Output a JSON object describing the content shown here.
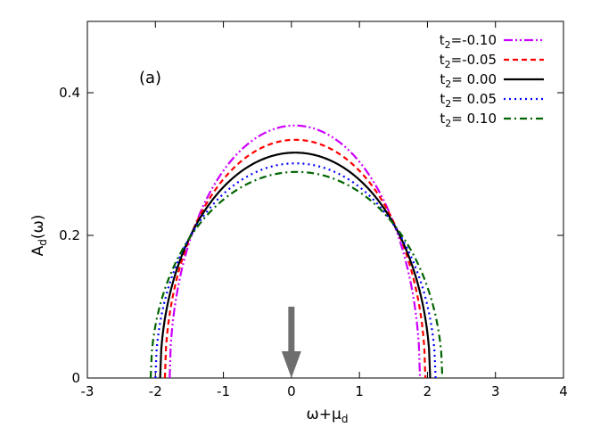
{
  "chart_data": {
    "type": "line",
    "panel_label": "(a)",
    "xlabel": {
      "main": "ω+μ",
      "sub": "d"
    },
    "ylabel": {
      "main": "A",
      "sub": "d",
      "tail": "(ω)"
    },
    "xlim": [
      -3,
      4
    ],
    "ylim": [
      0,
      0.5
    ],
    "x_ticks": [
      -3,
      -2,
      -1,
      0,
      1,
      2,
      3,
      4
    ],
    "x_tick_labels": [
      "-3",
      "-2",
      "-1",
      "0",
      "1",
      "2",
      "3",
      "4"
    ],
    "y_ticks": [
      0,
      0.2,
      0.4
    ],
    "y_tick_labels": [
      "0",
      "0.2",
      "0.4"
    ],
    "grid": false,
    "legend_position": "top-right",
    "series": [
      {
        "name": "t2=-0.10",
        "label_main": "t",
        "label_sub": "2",
        "label_rest": "=-0.10",
        "color": "#cc00ff",
        "dash": "10,3,2,3,2,3",
        "x_left": -1.79,
        "x_right": 1.89,
        "peak": 0.354
      },
      {
        "name": "t2=-0.05",
        "label_main": "t",
        "label_sub": "2",
        "label_rest": "=-0.05",
        "color": "#ff0000",
        "dash": "6,4",
        "x_left": -1.86,
        "x_right": 1.97,
        "peak": 0.334
      },
      {
        "name": "t2= 0.00",
        "label_main": "t",
        "label_sub": "2",
        "label_rest": "= 0.00",
        "color": "#000000",
        "dash": "",
        "x_left": -1.93,
        "x_right": 2.04,
        "peak": 0.316
      },
      {
        "name": "t2= 0.05",
        "label_main": "t",
        "label_sub": "2",
        "label_rest": "= 0.05",
        "color": "#0000ff",
        "dash": "2,4",
        "x_left": -2.0,
        "x_right": 2.12,
        "peak": 0.301
      },
      {
        "name": "t2= 0.10",
        "label_main": "t",
        "label_sub": "2",
        "label_rest": "= 0.10",
        "color": "#006400",
        "dash": "8,4,2,4",
        "x_left": -2.07,
        "x_right": 2.22,
        "peak": 0.289
      }
    ],
    "annotation": {
      "type": "arrow",
      "x": 0.0,
      "y_from": 0.1,
      "y_to": 0.0,
      "color": "#6e6e6e"
    }
  }
}
